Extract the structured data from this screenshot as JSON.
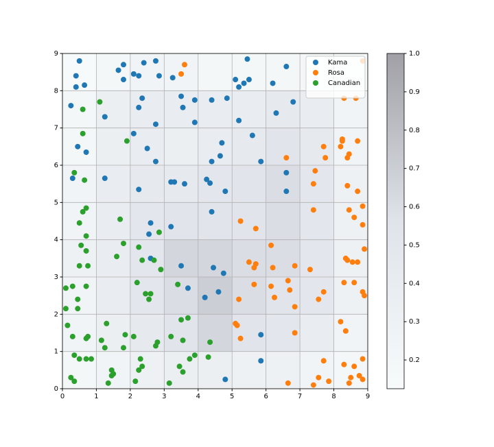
{
  "chart_data": {
    "type": "scatter",
    "xlim": [
      0,
      9
    ],
    "ylim": [
      0,
      9
    ],
    "xticks": [
      0,
      1,
      2,
      3,
      4,
      5,
      6,
      7,
      8,
      9
    ],
    "yticks": [
      0,
      1,
      2,
      3,
      4,
      5,
      6,
      7,
      8,
      9
    ],
    "grid": true,
    "legend": "upper right",
    "heatmap": {
      "cmap": [
        "#f7fbfb",
        "#e0e3ea",
        "#a0a0a6"
      ],
      "z": [
        [
          0.2,
          0.25,
          0.3,
          0.35,
          0.35,
          0.3,
          0.3,
          0.25,
          0.2
        ],
        [
          0.25,
          0.35,
          0.45,
          0.55,
          0.65,
          0.55,
          0.5,
          0.4,
          0.25
        ],
        [
          0.25,
          0.4,
          0.5,
          0.6,
          0.7,
          0.6,
          0.55,
          0.5,
          0.3
        ],
        [
          0.3,
          0.4,
          0.5,
          0.65,
          0.65,
          0.6,
          0.6,
          0.5,
          0.3
        ],
        [
          0.25,
          0.4,
          0.5,
          0.55,
          0.55,
          0.55,
          0.6,
          0.5,
          0.3
        ],
        [
          0.25,
          0.4,
          0.45,
          0.45,
          0.5,
          0.55,
          0.6,
          0.5,
          0.3
        ],
        [
          0.2,
          0.35,
          0.4,
          0.35,
          0.4,
          0.45,
          0.55,
          0.45,
          0.25
        ],
        [
          0.2,
          0.35,
          0.4,
          0.4,
          0.4,
          0.4,
          0.45,
          0.4,
          0.25
        ],
        [
          0.15,
          0.2,
          0.25,
          0.25,
          0.2,
          0.2,
          0.2,
          0.2,
          0.15
        ]
      ]
    },
    "colorbar": {
      "lim": [
        0.125,
        1.0
      ],
      "ticks": [
        0.2,
        0.3,
        0.4,
        0.5,
        0.6,
        0.7,
        0.8,
        0.9,
        {
          "value": 1,
          "label": "1.0"
        }
      ]
    },
    "series": [
      {
        "name": "Kama",
        "color": "#1f77b4",
        "x": [
          0.5,
          0.4,
          0.4,
          0.65,
          0.25,
          1.65,
          1.8,
          1.8,
          2.1,
          2.25,
          2.4,
          2.75,
          2.85,
          3.25,
          2.35,
          2.25,
          1.25,
          2.1,
          2.75,
          3.5,
          3.9,
          3.55,
          3.9,
          4.4,
          4.85,
          5.1,
          5.2,
          5.35,
          5.45,
          5.5,
          6.2,
          6.6,
          6.3,
          6.8,
          5.2,
          5.6,
          4.7,
          4.65,
          4.4,
          5.85,
          2.5,
          2.75,
          0.45,
          0.7,
          0.3,
          1.25,
          2.25,
          3.2,
          3.3,
          3.6,
          4.25,
          4.35,
          4.8,
          6.6,
          6.6,
          4.4,
          2.6,
          2.55,
          3.2,
          2.6,
          3.5,
          3.7,
          4.45,
          4.75,
          4.2,
          4.6,
          5.85,
          5.85,
          4.8
        ],
        "y": [
          8.8,
          8.4,
          8.1,
          8.15,
          7.6,
          8.55,
          8.7,
          8.3,
          8.45,
          8.4,
          8.75,
          8.8,
          8.4,
          8.35,
          7.8,
          7.55,
          7.3,
          6.85,
          7.1,
          7.85,
          7.75,
          7.55,
          7.15,
          7.75,
          7.8,
          8.3,
          8.1,
          8.2,
          8.85,
          8.3,
          8.2,
          8.65,
          7.4,
          7.7,
          7.2,
          6.8,
          6.6,
          6.25,
          6.1,
          6.1,
          6.45,
          6.1,
          6.5,
          6.35,
          5.65,
          5.65,
          5.35,
          5.55,
          5.55,
          5.5,
          5.62,
          5.52,
          5.3,
          5.8,
          5.3,
          4.75,
          4.45,
          4.15,
          4.35,
          3.5,
          3.3,
          2.7,
          3.25,
          3.1,
          2.45,
          2.6,
          1.45,
          0.75,
          0.25
        ]
      },
      {
        "name": "Rosa",
        "color": "#ff7f0e",
        "x": [
          3.5,
          3.6,
          8.85,
          8.3,
          8.65,
          6.6,
          7.7,
          7.75,
          8.2,
          8.25,
          8.25,
          8.45,
          8.4,
          8.7,
          7.45,
          7.4,
          8.4,
          8.7,
          7.4,
          8.45,
          8.6,
          8.85,
          8.85,
          5.25,
          5.7,
          6.15,
          5.5,
          5.65,
          5.7,
          6.2,
          6.85,
          7.3,
          8.35,
          8.4,
          8.55,
          8.7,
          8.9,
          5.65,
          6.15,
          6.25,
          6.65,
          6.7,
          5.2,
          6.85,
          7.55,
          7.7,
          8.3,
          8.6,
          8.85,
          8.9,
          8.2,
          8.35,
          6.85,
          5.1,
          5.15,
          5.25,
          7.7,
          8.3,
          8.6,
          8.85,
          8.5,
          8.45,
          8.75,
          8.85,
          7.4,
          7.55,
          7.85,
          6.65
        ],
        "y": [
          8.45,
          8.7,
          8.8,
          7.8,
          7.8,
          6.2,
          6.5,
          6.2,
          6.5,
          6.65,
          6.7,
          6.3,
          6.2,
          6.65,
          5.85,
          5.5,
          5.45,
          5.3,
          4.8,
          4.8,
          4.6,
          4.9,
          4.4,
          4.5,
          4.3,
          3.85,
          3.4,
          3.25,
          3.35,
          3.25,
          3.3,
          3.2,
          3.5,
          3.45,
          3.4,
          3.4,
          3.75,
          2.8,
          2.75,
          2.45,
          2.9,
          2.65,
          2.4,
          2.2,
          2.4,
          2.6,
          2.85,
          2.85,
          2.6,
          2.5,
          1.8,
          1.55,
          1.5,
          1.75,
          1.7,
          1.35,
          0.75,
          0.65,
          0.6,
          0.8,
          0.3,
          0.15,
          0.35,
          0.25,
          0.1,
          0.3,
          0.2,
          0.15
        ]
      },
      {
        "name": "Canadian",
        "color": "#2ca02c",
        "x": [
          1.1,
          0.6,
          0.6,
          1.9,
          0.35,
          0.65,
          0.7,
          0.6,
          0.5,
          1.7,
          0.7,
          0.55,
          0.7,
          1.8,
          1.6,
          2.25,
          2.35,
          2.7,
          2.85,
          0.5,
          0.75,
          2.9,
          0.1,
          0.3,
          0.7,
          0.45,
          0.1,
          0.45,
          2.2,
          2.45,
          2.6,
          2.55,
          3.4,
          0.15,
          0.3,
          0.7,
          0.75,
          1.3,
          1.85,
          2.1,
          1.15,
          1.25,
          1.8,
          2.8,
          2.75,
          3.5,
          3.7,
          3.2,
          3.55,
          4.35,
          0.35,
          0.5,
          0.7,
          0.85,
          2.3,
          2.35,
          2.25,
          3.75,
          3.9,
          4.3,
          3.45,
          3.55,
          1.45,
          1.45,
          1.5,
          1.35,
          2.15,
          3.15,
          0.25,
          0.35
        ],
        "y": [
          7.7,
          7.5,
          6.85,
          6.65,
          5.8,
          5.6,
          4.85,
          4.75,
          4.45,
          4.55,
          4.1,
          3.85,
          3.7,
          3.9,
          3.55,
          3.8,
          3.45,
          3.45,
          4.2,
          3.3,
          3.3,
          3.2,
          2.7,
          2.75,
          2.75,
          2.4,
          2.15,
          2.15,
          2.85,
          2.55,
          2.55,
          2.4,
          2.8,
          1.7,
          1.4,
          1.35,
          1.4,
          1.75,
          1.45,
          1.4,
          1.3,
          1.1,
          1.1,
          1.25,
          1.15,
          1.85,
          1.9,
          1.4,
          1.3,
          1.25,
          0.9,
          0.8,
          0.8,
          0.8,
          0.8,
          0.6,
          0.5,
          0.8,
          0.9,
          0.85,
          0.6,
          0.45,
          0.5,
          0.35,
          0.4,
          0.15,
          0.2,
          0.15,
          0.3,
          0.2
        ]
      }
    ]
  }
}
